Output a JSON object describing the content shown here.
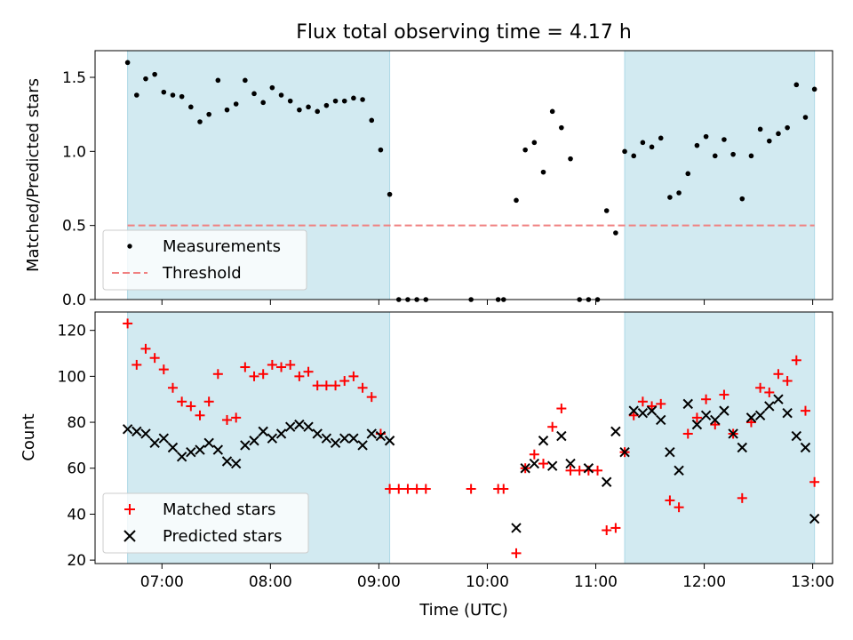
{
  "chart_data": [
    {
      "type": "scatter",
      "title": "Flux total observing time = 4.17 h",
      "ylabel": "Matched/Predicted stars",
      "xlabel": "",
      "xlim": [
        "06:23",
        "13:11"
      ],
      "ylim": [
        0,
        1.68
      ],
      "grid": false,
      "yticks": [
        0.0,
        0.5,
        1.0,
        1.5
      ],
      "ytick_labels": [
        "0.0",
        "0.5",
        "1.0",
        "1.5"
      ],
      "xticks": [
        "07:00",
        "08:00",
        "09:00",
        "10:00",
        "11:00",
        "12:00",
        "13:00"
      ],
      "xtick_labels_visible": false,
      "shaded_intervals": [
        [
          "06:41",
          "09:06"
        ],
        [
          "11:16",
          "13:01"
        ]
      ],
      "shade_color": "#add8e6",
      "legend": {
        "position": "lower-left",
        "entries": [
          "Measurements",
          "Threshold"
        ]
      },
      "series": [
        {
          "name": "Measurements",
          "marker": "dot",
          "color": "#000000",
          "points": [
            [
              "06:41",
              1.6
            ],
            [
              "06:46",
              1.38
            ],
            [
              "06:51",
              1.49
            ],
            [
              "06:56",
              1.52
            ],
            [
              "07:01",
              1.4
            ],
            [
              "07:06",
              1.38
            ],
            [
              "07:11",
              1.37
            ],
            [
              "07:16",
              1.3
            ],
            [
              "07:21",
              1.2
            ],
            [
              "07:26",
              1.25
            ],
            [
              "07:31",
              1.48
            ],
            [
              "07:36",
              1.28
            ],
            [
              "07:41",
              1.32
            ],
            [
              "07:46",
              1.48
            ],
            [
              "07:51",
              1.39
            ],
            [
              "07:56",
              1.33
            ],
            [
              "08:01",
              1.43
            ],
            [
              "08:06",
              1.38
            ],
            [
              "08:11",
              1.34
            ],
            [
              "08:16",
              1.28
            ],
            [
              "08:21",
              1.3
            ],
            [
              "08:26",
              1.27
            ],
            [
              "08:31",
              1.31
            ],
            [
              "08:36",
              1.34
            ],
            [
              "08:41",
              1.34
            ],
            [
              "08:46",
              1.36
            ],
            [
              "08:51",
              1.35
            ],
            [
              "08:56",
              1.21
            ],
            [
              "09:01",
              1.01
            ],
            [
              "09:06",
              0.71
            ],
            [
              "09:11",
              0.0
            ],
            [
              "09:16",
              0.0
            ],
            [
              "09:21",
              0.0
            ],
            [
              "09:26",
              0.0
            ],
            [
              "09:51",
              0.0
            ],
            [
              "10:06",
              0.0
            ],
            [
              "10:09",
              0.0
            ],
            [
              "10:16",
              0.67
            ],
            [
              "10:21",
              1.01
            ],
            [
              "10:26",
              1.06
            ],
            [
              "10:31",
              0.86
            ],
            [
              "10:36",
              1.27
            ],
            [
              "10:41",
              1.16
            ],
            [
              "10:46",
              0.95
            ],
            [
              "10:51",
              0.0
            ],
            [
              "10:56",
              0.0
            ],
            [
              "11:01",
              0.0
            ],
            [
              "11:06",
              0.6
            ],
            [
              "11:11",
              0.45
            ],
            [
              "11:16",
              1.0
            ],
            [
              "11:21",
              0.97
            ],
            [
              "11:26",
              1.06
            ],
            [
              "11:31",
              1.03
            ],
            [
              "11:36",
              1.09
            ],
            [
              "11:41",
              0.69
            ],
            [
              "11:46",
              0.72
            ],
            [
              "11:51",
              0.85
            ],
            [
              "11:56",
              1.04
            ],
            [
              "12:01",
              1.1
            ],
            [
              "12:06",
              0.97
            ],
            [
              "12:11",
              1.08
            ],
            [
              "12:16",
              0.98
            ],
            [
              "12:21",
              0.68
            ],
            [
              "12:26",
              0.97
            ],
            [
              "12:31",
              1.15
            ],
            [
              "12:36",
              1.07
            ],
            [
              "12:41",
              1.12
            ],
            [
              "12:46",
              1.16
            ],
            [
              "12:51",
              1.45
            ],
            [
              "12:56",
              1.23
            ],
            [
              "13:01",
              1.42
            ]
          ]
        },
        {
          "name": "Threshold",
          "marker": "dashed-line",
          "color": "#f08080",
          "points": [
            [
              "06:41",
              0.5
            ],
            [
              "13:01",
              0.5
            ]
          ]
        }
      ]
    },
    {
      "type": "scatter",
      "title": "",
      "ylabel": "Count",
      "xlabel": "Time (UTC)",
      "xlim": [
        "06:23",
        "13:11"
      ],
      "ylim": [
        18.5,
        128
      ],
      "grid": false,
      "yticks": [
        20,
        40,
        60,
        80,
        100,
        120
      ],
      "ytick_labels": [
        "20",
        "40",
        "60",
        "80",
        "100",
        "120"
      ],
      "xticks": [
        "07:00",
        "08:00",
        "09:00",
        "10:00",
        "11:00",
        "12:00",
        "13:00"
      ],
      "xtick_labels": [
        "07:00",
        "08:00",
        "09:00",
        "10:00",
        "11:00",
        "12:00",
        "13:00"
      ],
      "shaded_intervals": [
        [
          "06:41",
          "09:06"
        ],
        [
          "11:16",
          "13:01"
        ]
      ],
      "shade_color": "#add8e6",
      "legend": {
        "position": "lower-left",
        "entries": [
          "Matched stars",
          "Predicted stars"
        ]
      },
      "series": [
        {
          "name": "Matched stars",
          "marker": "plus",
          "color": "#ff0000",
          "points": [
            [
              "06:41",
              123
            ],
            [
              "06:46",
              105
            ],
            [
              "06:51",
              112
            ],
            [
              "06:56",
              108
            ],
            [
              "07:01",
              103
            ],
            [
              "07:06",
              95
            ],
            [
              "07:11",
              89
            ],
            [
              "07:16",
              87
            ],
            [
              "07:21",
              83
            ],
            [
              "07:26",
              89
            ],
            [
              "07:31",
              101
            ],
            [
              "07:36",
              81
            ],
            [
              "07:41",
              82
            ],
            [
              "07:46",
              104
            ],
            [
              "07:51",
              100
            ],
            [
              "07:56",
              101
            ],
            [
              "08:01",
              105
            ],
            [
              "08:06",
              104
            ],
            [
              "08:11",
              105
            ],
            [
              "08:16",
              100
            ],
            [
              "08:21",
              102
            ],
            [
              "08:26",
              96
            ],
            [
              "08:31",
              96
            ],
            [
              "08:36",
              96
            ],
            [
              "08:41",
              98
            ],
            [
              "08:46",
              100
            ],
            [
              "08:51",
              95
            ],
            [
              "08:56",
              91
            ],
            [
              "09:01",
              75
            ],
            [
              "09:06",
              51
            ],
            [
              "09:11",
              51
            ],
            [
              "09:16",
              51
            ],
            [
              "09:21",
              51
            ],
            [
              "09:26",
              51
            ],
            [
              "09:51",
              51
            ],
            [
              "10:06",
              51
            ],
            [
              "10:09",
              51
            ],
            [
              "10:16",
              23
            ],
            [
              "10:21",
              60
            ],
            [
              "10:26",
              66
            ],
            [
              "10:31",
              62
            ],
            [
              "10:36",
              78
            ],
            [
              "10:41",
              86
            ],
            [
              "10:46",
              59
            ],
            [
              "10:51",
              59
            ],
            [
              "10:56",
              59
            ],
            [
              "11:01",
              59
            ],
            [
              "11:06",
              33
            ],
            [
              "11:11",
              34
            ],
            [
              "11:16",
              67
            ],
            [
              "11:21",
              83
            ],
            [
              "11:26",
              89
            ],
            [
              "11:31",
              87
            ],
            [
              "11:36",
              88
            ],
            [
              "11:41",
              46
            ],
            [
              "11:46",
              43
            ],
            [
              "11:51",
              75
            ],
            [
              "11:56",
              82
            ],
            [
              "12:01",
              90
            ],
            [
              "12:06",
              79
            ],
            [
              "12:11",
              92
            ],
            [
              "12:16",
              75
            ],
            [
              "12:21",
              47
            ],
            [
              "12:26",
              80
            ],
            [
              "12:31",
              95
            ],
            [
              "12:36",
              93
            ],
            [
              "12:41",
              101
            ],
            [
              "12:46",
              98
            ],
            [
              "12:51",
              107
            ],
            [
              "12:56",
              85
            ],
            [
              "13:01",
              54
            ]
          ]
        },
        {
          "name": "Predicted stars",
          "marker": "x",
          "color": "#000000",
          "points": [
            [
              "06:41",
              77
            ],
            [
              "06:46",
              76
            ],
            [
              "06:51",
              75
            ],
            [
              "06:56",
              71
            ],
            [
              "07:01",
              73
            ],
            [
              "07:06",
              69
            ],
            [
              "07:11",
              65
            ],
            [
              "07:16",
              67
            ],
            [
              "07:21",
              68
            ],
            [
              "07:26",
              71
            ],
            [
              "07:31",
              68
            ],
            [
              "07:36",
              63
            ],
            [
              "07:41",
              62
            ],
            [
              "07:46",
              70
            ],
            [
              "07:51",
              72
            ],
            [
              "07:56",
              76
            ],
            [
              "08:01",
              73
            ],
            [
              "08:06",
              75
            ],
            [
              "08:11",
              78
            ],
            [
              "08:16",
              79
            ],
            [
              "08:21",
              78
            ],
            [
              "08:26",
              75
            ],
            [
              "08:31",
              73
            ],
            [
              "08:36",
              71
            ],
            [
              "08:41",
              73
            ],
            [
              "08:46",
              73
            ],
            [
              "08:51",
              70
            ],
            [
              "08:56",
              75
            ],
            [
              "09:01",
              74
            ],
            [
              "09:06",
              72
            ],
            [
              "10:16",
              34
            ],
            [
              "10:21",
              60
            ],
            [
              "10:26",
              62
            ],
            [
              "10:31",
              72
            ],
            [
              "10:36",
              61
            ],
            [
              "10:41",
              74
            ],
            [
              "10:46",
              62
            ],
            [
              "10:56",
              60
            ],
            [
              "11:06",
              54
            ],
            [
              "11:11",
              76
            ],
            [
              "11:16",
              67
            ],
            [
              "11:21",
              85
            ],
            [
              "11:26",
              84
            ],
            [
              "11:31",
              85
            ],
            [
              "11:36",
              81
            ],
            [
              "11:41",
              67
            ],
            [
              "11:46",
              59
            ],
            [
              "11:51",
              88
            ],
            [
              "11:56",
              79
            ],
            [
              "12:01",
              83
            ],
            [
              "12:06",
              81
            ],
            [
              "12:11",
              85
            ],
            [
              "12:16",
              75
            ],
            [
              "12:21",
              69
            ],
            [
              "12:26",
              82
            ],
            [
              "12:31",
              83
            ],
            [
              "12:36",
              87
            ],
            [
              "12:41",
              90
            ],
            [
              "12:46",
              84
            ],
            [
              "12:51",
              74
            ],
            [
              "12:56",
              69
            ],
            [
              "13:01",
              38
            ]
          ]
        }
      ]
    }
  ]
}
